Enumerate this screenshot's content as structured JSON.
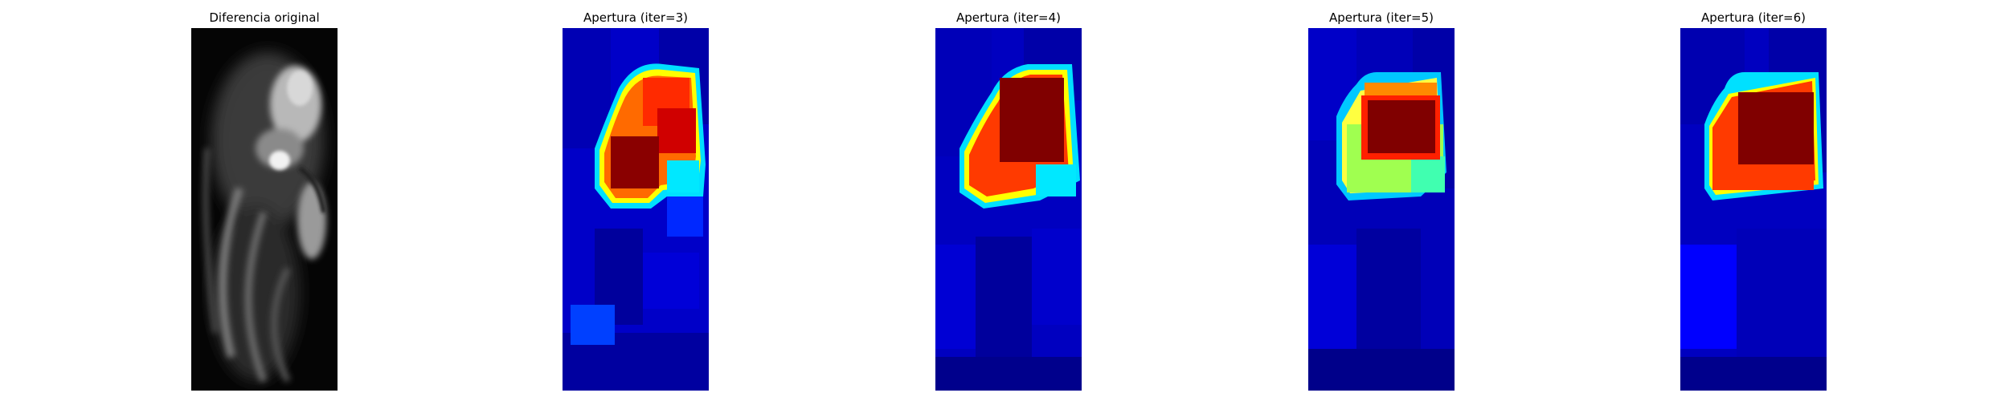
{
  "figure": {
    "panels": [
      {
        "title": "Diferencia original",
        "colormap": "gray"
      },
      {
        "title": "Apertura (iter=3)",
        "colormap": "jet"
      },
      {
        "title": "Apertura (iter=4)",
        "colormap": "jet"
      },
      {
        "title": "Apertura (iter=5)",
        "colormap": "jet"
      },
      {
        "title": "Apertura (iter=6)",
        "colormap": "jet"
      }
    ]
  },
  "colors": {
    "background": "#ffffff",
    "jet_dark_blue": "#00008f",
    "jet_blue": "#0000e0",
    "jet_cyan": "#00e0ff",
    "jet_green_yellow": "#a0ff50",
    "jet_orange_red": "#ff3a00",
    "jet_dark_red": "#800000"
  }
}
